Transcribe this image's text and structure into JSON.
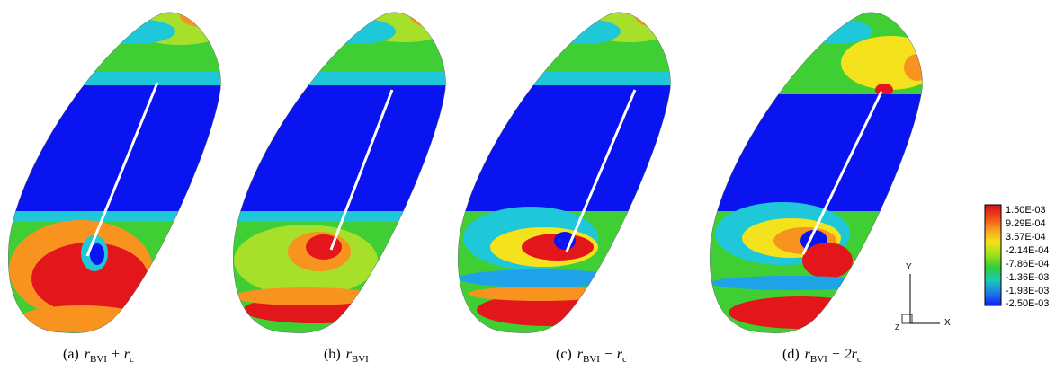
{
  "panels": [
    {
      "id": "a",
      "label": "(a)",
      "caption_pre": "r",
      "caption_sub": "BVI",
      "caption_post": " + r",
      "caption_post_sub": "c"
    },
    {
      "id": "b",
      "label": "(b)",
      "caption_pre": "r",
      "caption_sub": "BVI",
      "caption_post": "",
      "caption_post_sub": ""
    },
    {
      "id": "c",
      "label": "(c)",
      "caption_pre": "r",
      "caption_sub": "BVI",
      "caption_post": " − r",
      "caption_post_sub": "c"
    },
    {
      "id": "d",
      "label": "(d)",
      "caption_pre": "r",
      "caption_sub": "BVI",
      "caption_post": " − 2r",
      "caption_post_sub": "c"
    }
  ],
  "legend": {
    "ticks": [
      "1.50E-03",
      "9.29E-04",
      "3.57E-04",
      "-2.14E-04",
      "-7.86E-04",
      "-1.36E-03",
      "-1.93E-03",
      "-2.50E-03"
    ],
    "colors": [
      "#d4141a",
      "#f25a1e",
      "#f8a11e",
      "#f3e21c",
      "#b8e21c",
      "#43cf2a",
      "#1fc46c",
      "#18c9c2",
      "#1ea2e8",
      "#1b62e0",
      "#0f1ff0"
    ]
  },
  "axes_glyph": {
    "y": "Y",
    "x": "X",
    "z": "Z"
  },
  "colors": {
    "blue": "#0a14f0",
    "cyan": "#1ec8d8",
    "green": "#3fcf34",
    "lime": "#a6e02a",
    "yellow": "#f0e21e",
    "orange": "#f7931e",
    "red": "#e3161b"
  }
}
